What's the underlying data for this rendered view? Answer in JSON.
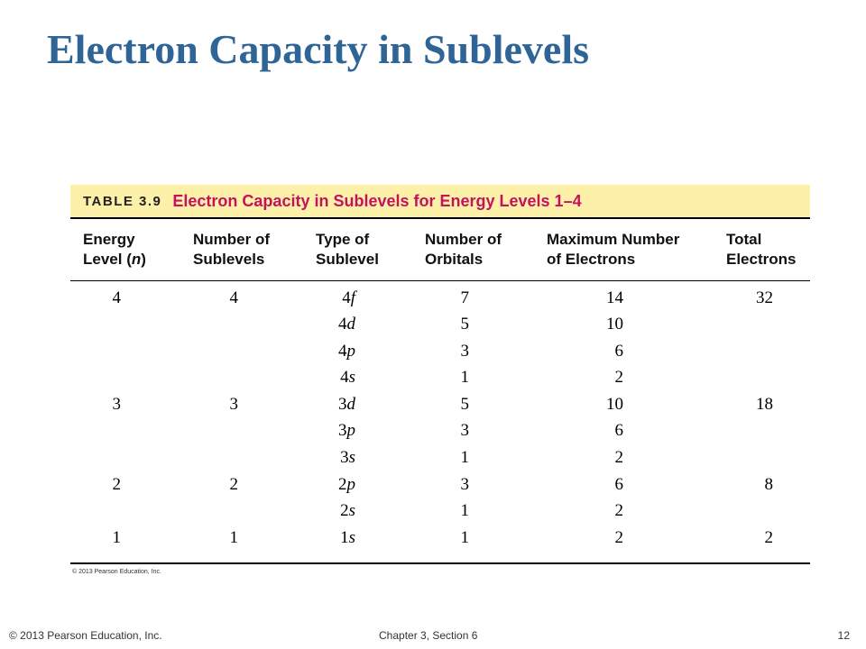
{
  "slide": {
    "title": "Electron Capacity in Sublevels",
    "footer_left": "© 2013 Pearson Education, Inc.",
    "footer_center": "Chapter 3, Section 6",
    "page_number": "12"
  },
  "table": {
    "number": "TABLE 3.9",
    "title": "Electron Capacity in Sublevels for Energy Levels 1–4",
    "headers": [
      [
        "Energy",
        "Level (n)"
      ],
      [
        "Number of",
        "Sublevels"
      ],
      [
        "Type of",
        "Sublevel"
      ],
      [
        "Number of",
        "Orbitals"
      ],
      [
        "Maximum Number",
        "of Electrons"
      ],
      [
        "Total",
        "Electrons"
      ]
    ],
    "rows": [
      {
        "level": "4",
        "count": "4",
        "type_num": "4",
        "type_letter": "f",
        "orbitals": "7",
        "max": "14",
        "total": "32"
      },
      {
        "level": "",
        "count": "",
        "type_num": "4",
        "type_letter": "d",
        "orbitals": "5",
        "max": "10",
        "total": ""
      },
      {
        "level": "",
        "count": "",
        "type_num": "4",
        "type_letter": "p",
        "orbitals": "3",
        "max": "6",
        "total": ""
      },
      {
        "level": "",
        "count": "",
        "type_num": "4",
        "type_letter": "s",
        "orbitals": "1",
        "max": "2",
        "total": ""
      },
      {
        "level": "3",
        "count": "3",
        "type_num": "3",
        "type_letter": "d",
        "orbitals": "5",
        "max": "10",
        "total": "18"
      },
      {
        "level": "",
        "count": "",
        "type_num": "3",
        "type_letter": "p",
        "orbitals": "3",
        "max": "6",
        "total": ""
      },
      {
        "level": "",
        "count": "",
        "type_num": "3",
        "type_letter": "s",
        "orbitals": "1",
        "max": "2",
        "total": ""
      },
      {
        "level": "2",
        "count": "2",
        "type_num": "2",
        "type_letter": "p",
        "orbitals": "3",
        "max": "6",
        "total": "8"
      },
      {
        "level": "",
        "count": "",
        "type_num": "2",
        "type_letter": "s",
        "orbitals": "1",
        "max": "2",
        "total": ""
      },
      {
        "level": "1",
        "count": "1",
        "type_num": "1",
        "type_letter": "s",
        "orbitals": "1",
        "max": "2",
        "total": "2"
      }
    ],
    "copyright": "© 2013 Pearson Education, Inc."
  },
  "colors": {
    "title": "#2f6496",
    "caption_background": "#fdf0a8",
    "caption_text": "#c4125e"
  }
}
